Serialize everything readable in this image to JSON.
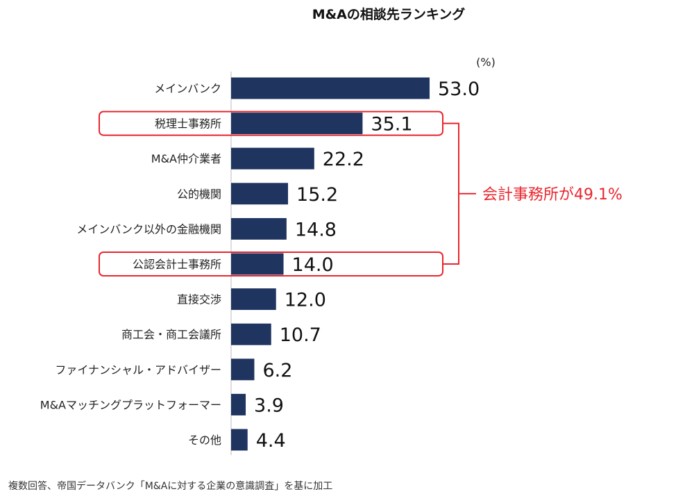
{
  "chart_data": {
    "type": "bar",
    "orientation": "horizontal",
    "title": "M&Aの相談先ランキング",
    "unit_label": "(%)",
    "categories": [
      "メインバンク",
      "税理士事務所",
      "M&A仲介業者",
      "公的機関",
      "メインバンク以外の金融機関",
      "公認会計士事務所",
      "直接交渉",
      "商工会・商工会議所",
      "ファイナンシャル・アドバイザー",
      "M&Aマッチングプラットフォーマー",
      "その他"
    ],
    "values": [
      53.0,
      35.1,
      22.2,
      15.2,
      14.8,
      14.0,
      12.0,
      10.7,
      6.2,
      3.9,
      4.4
    ],
    "value_labels": [
      "53.0",
      "35.1",
      "22.2",
      "15.2",
      "14.8",
      "14.0",
      "12.0",
      "10.7",
      "6.2",
      "3.9",
      "4.4"
    ],
    "xlim": [
      0,
      53.0
    ],
    "bar_color": "#1f3560",
    "grid": false,
    "legend": "none",
    "highlight": {
      "categories": [
        "税理士事務所",
        "公認会計士事務所"
      ],
      "annotation": "会計事務所が49.1%",
      "color": "#e8262e"
    }
  },
  "source_note": "複数回答、帝国データバンク「M&Aに対する企業の意識調査」を基に加工"
}
